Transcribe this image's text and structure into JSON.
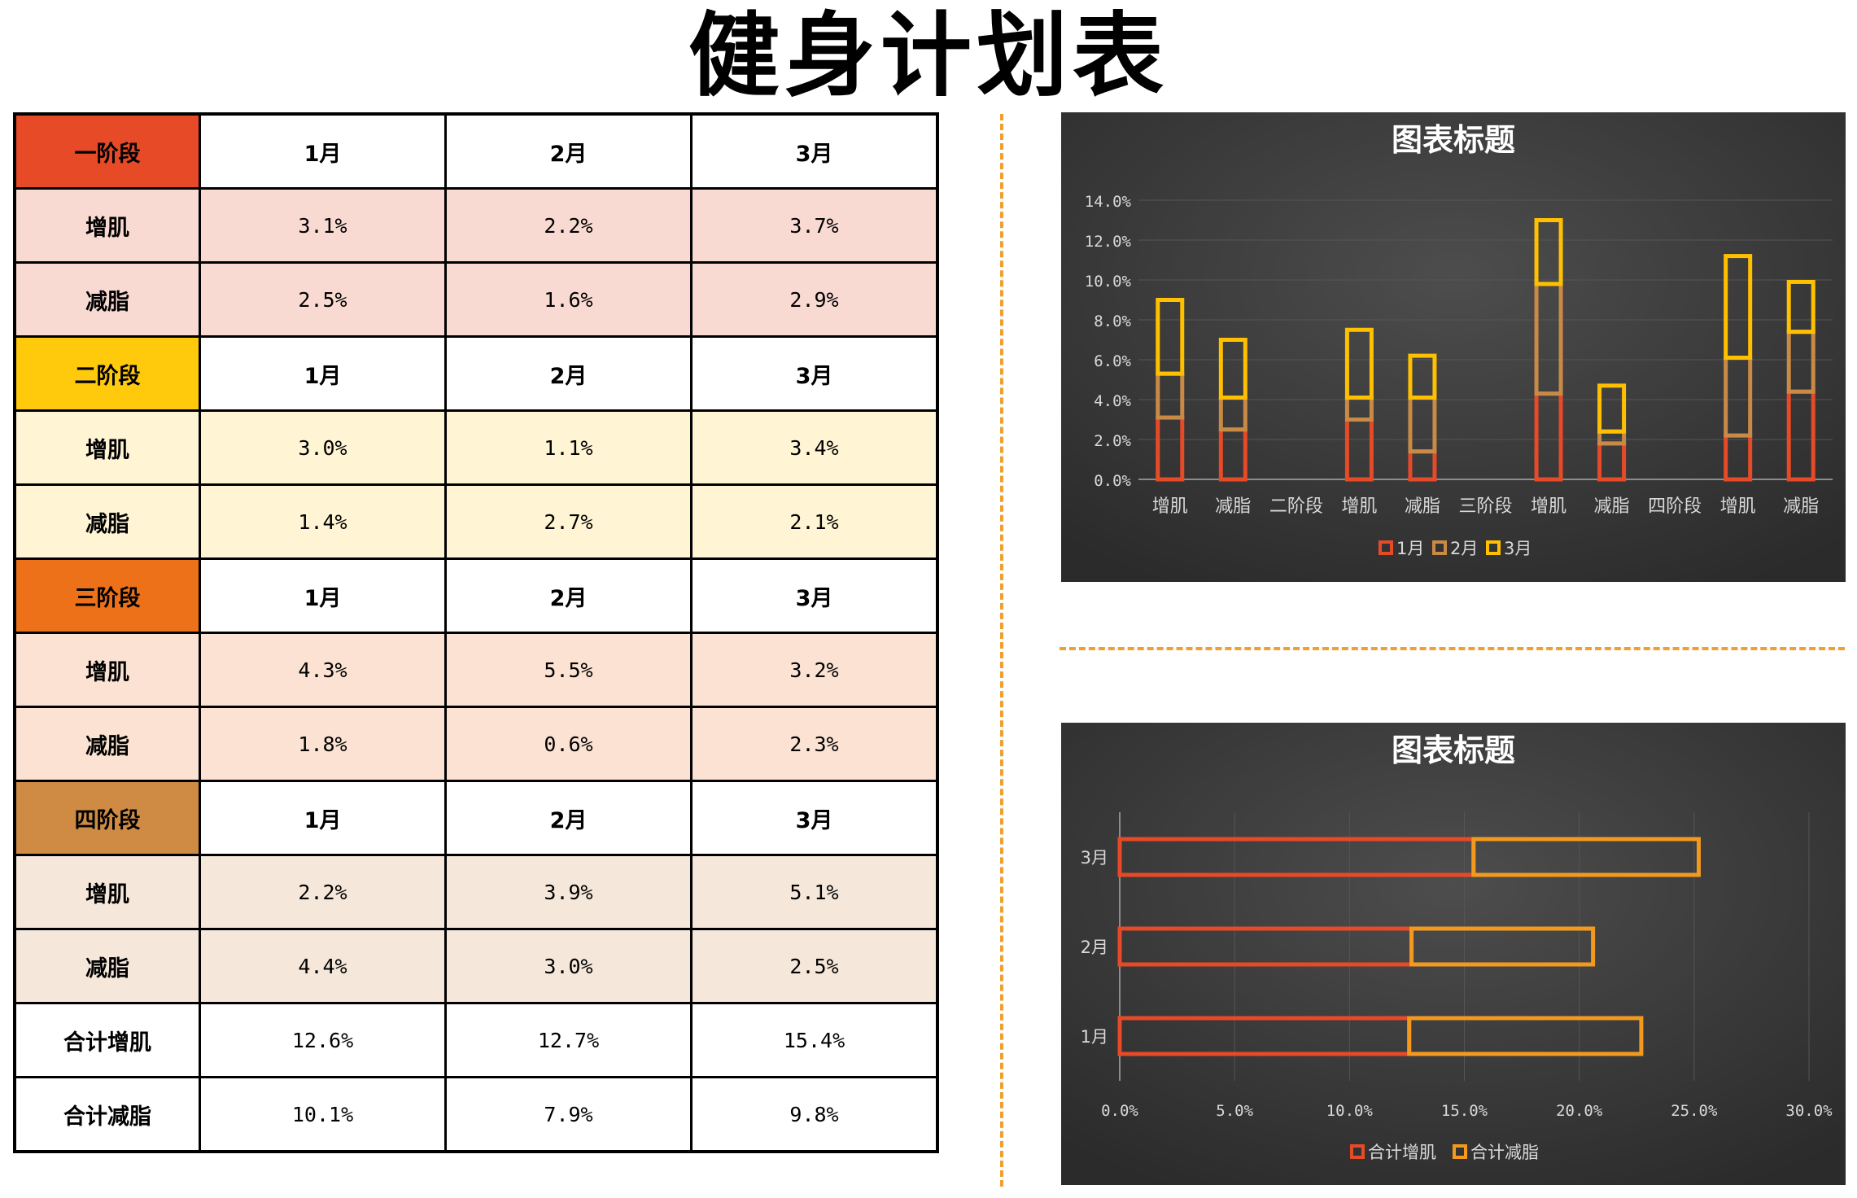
{
  "title": "健身计划表",
  "table": {
    "stages": [
      {
        "label": "一阶段",
        "color": "#e64a27",
        "fill": "#f9dad3",
        "months": [
          "1月",
          "2月",
          "3月"
        ],
        "rows": [
          {
            "label": "增肌",
            "values": [
              "3.1%",
              "2.2%",
              "3.7%"
            ]
          },
          {
            "label": "减脂",
            "values": [
              "2.5%",
              "1.6%",
              "2.9%"
            ]
          }
        ]
      },
      {
        "label": "二阶段",
        "color": "#ffc90c",
        "fill": "#fff4d4",
        "months": [
          "1月",
          "2月",
          "3月"
        ],
        "rows": [
          {
            "label": "增肌",
            "values": [
              "3.0%",
              "1.1%",
              "3.4%"
            ]
          },
          {
            "label": "减脂",
            "values": [
              "1.4%",
              "2.7%",
              "2.1%"
            ]
          }
        ]
      },
      {
        "label": "三阶段",
        "color": "#ed7118",
        "fill": "#fbe2d2",
        "months": [
          "1月",
          "2月",
          "3月"
        ],
        "rows": [
          {
            "label": "增肌",
            "values": [
              "4.3%",
              "5.5%",
              "3.2%"
            ]
          },
          {
            "label": "减脂",
            "values": [
              "1.8%",
              "0.6%",
              "2.3%"
            ]
          }
        ]
      },
      {
        "label": "四阶段",
        "color": "#cf8b43",
        "fill": "#f5e8da",
        "months": [
          "1月",
          "2月",
          "3月"
        ],
        "rows": [
          {
            "label": "增肌",
            "values": [
              "2.2%",
              "3.9%",
              "5.1%"
            ]
          },
          {
            "label": "减脂",
            "values": [
              "4.4%",
              "3.0%",
              "2.5%"
            ]
          }
        ]
      }
    ],
    "totals": [
      {
        "label": "合计增肌",
        "values": [
          "12.6%",
          "12.7%",
          "15.4%"
        ]
      },
      {
        "label": "合计减脂",
        "values": [
          "10.1%",
          "7.9%",
          "9.8%"
        ]
      }
    ]
  },
  "chart_data": [
    {
      "type": "bar",
      "stacked": true,
      "title": "图表标题",
      "categories": [
        "增肌",
        "减脂",
        "二阶段",
        "增肌",
        "减脂",
        "三阶段",
        "增肌",
        "减脂",
        "四阶段",
        "增肌",
        "减脂"
      ],
      "series": [
        {
          "name": "1月",
          "color": "#e64a27",
          "values": [
            3.1,
            2.5,
            0,
            3.0,
            1.4,
            0,
            4.3,
            1.8,
            0,
            2.2,
            4.4
          ]
        },
        {
          "name": "2月",
          "color": "#c98a45",
          "values": [
            2.2,
            1.6,
            0,
            1.1,
            2.7,
            0,
            5.5,
            0.6,
            0,
            3.9,
            3.0
          ]
        },
        {
          "name": "3月",
          "color": "#ffc000",
          "values": [
            3.7,
            2.9,
            0,
            3.4,
            2.1,
            0,
            3.2,
            2.3,
            0,
            5.1,
            2.5
          ]
        }
      ],
      "yticks": [
        "0.0%",
        "2.0%",
        "4.0%",
        "6.0%",
        "8.0%",
        "10.0%",
        "12.0%",
        "14.0%"
      ],
      "ylim": [
        0,
        14
      ],
      "grid": true,
      "legend": "bottom"
    },
    {
      "type": "bar",
      "orientation": "horizontal",
      "stacked": true,
      "title": "图表标题",
      "categories": [
        "1月",
        "2月",
        "3月"
      ],
      "series": [
        {
          "name": "合计增肌",
          "color": "#e64a27",
          "values": [
            12.6,
            12.7,
            15.4
          ]
        },
        {
          "name": "合计减脂",
          "color": "#f39a1e",
          "values": [
            10.1,
            7.9,
            9.8
          ]
        }
      ],
      "xticks": [
        "0.0%",
        "5.0%",
        "10.0%",
        "15.0%",
        "20.0%",
        "25.0%",
        "30.0%"
      ],
      "xlim": [
        0,
        30
      ],
      "grid": true,
      "legend": "bottom"
    }
  ]
}
